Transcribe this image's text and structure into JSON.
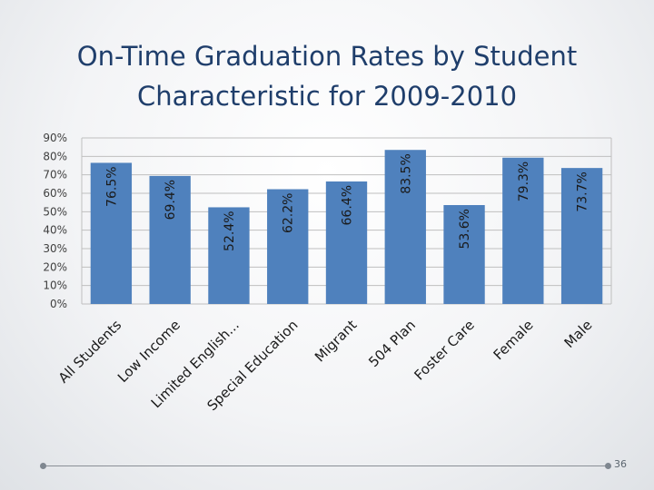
{
  "slide": {
    "title_line1": "On-Time Graduation Rates by Student",
    "title_line2": "Characteristic for 2009-2010",
    "page_number": "36"
  },
  "chart_data": {
    "type": "bar",
    "title": "",
    "categories": [
      "All Students",
      "Low Income",
      "Limited English...",
      "Special Education",
      "Migrant",
      "504 Plan",
      "Foster Care",
      "Female",
      "Male"
    ],
    "values": [
      76.5,
      69.4,
      52.4,
      62.2,
      66.4,
      83.5,
      53.6,
      79.3,
      73.7
    ],
    "data_labels": [
      "76.5%",
      "69.4%",
      "52.4%",
      "62.2%",
      "66.4%",
      "83.5%",
      "53.6%",
      "79.3%",
      "73.7%"
    ],
    "y_ticks": [
      "0%",
      "10%",
      "20%",
      "30%",
      "40%",
      "50%",
      "60%",
      "70%",
      "80%",
      "90%"
    ],
    "ylim": [
      0,
      90
    ],
    "grid": true,
    "legend": "none",
    "bar_color": "#4f81bd",
    "grid_color": "#bfbfbf"
  }
}
